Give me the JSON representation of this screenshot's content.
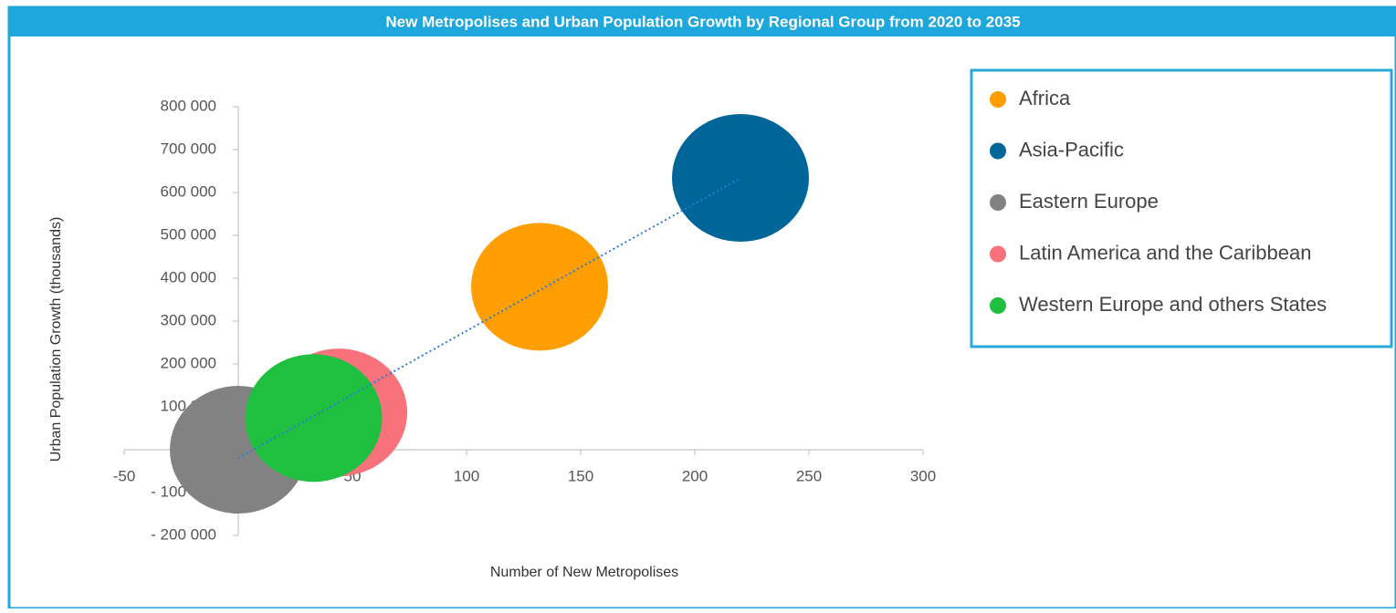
{
  "chart_data": {
    "type": "bubble",
    "title": "New Metropolises and Urban Population Growth by Regional Group from 2020 to 2035",
    "xlabel": "Number of New Metropolises",
    "ylabel": "Urban Population Growth (thousands)",
    "series": [
      {
        "name": "Africa",
        "color": "#ff9e00",
        "x": [
          132
        ],
        "values": [
          380000
        ]
      },
      {
        "name": "Asia-Pacific",
        "color": "#006699",
        "x": [
          220
        ],
        "values": [
          634000
        ]
      },
      {
        "name": "Eastern Europe",
        "color": "#828282",
        "x": [
          0
        ],
        "values": [
          0
        ]
      },
      {
        "name": "Latin America and the Caribbean",
        "color": "#f7727a",
        "x": [
          44
        ],
        "values": [
          87000
        ]
      },
      {
        "name": "Western Europe and others States",
        "color": "#1fbf3f",
        "x": [
          33
        ],
        "values": [
          74000
        ]
      }
    ],
    "xlim": [
      -50,
      300
    ],
    "xticks": [
      -50,
      0,
      50,
      100,
      150,
      200,
      250,
      300
    ],
    "ylim": [
      -200000,
      800000
    ],
    "yticks": [
      {
        "value": -200000,
        "label": "- 200 000"
      },
      {
        "value": -100000,
        "label": "- 100 000"
      },
      0,
      {
        "value": 100000,
        "label": "100 000"
      },
      {
        "value": 200000,
        "label": "200 000"
      },
      {
        "value": 300000,
        "label": "300 000"
      },
      {
        "value": 400000,
        "label": "400 000"
      },
      {
        "value": 500000,
        "label": "500 000"
      },
      {
        "value": 600000,
        "label": "600 000"
      },
      {
        "value": 700000,
        "label": "700 000"
      },
      {
        "value": 800000,
        "label": "800 000"
      }
    ],
    "trendline": "linear",
    "trendline_color": "#2b7bd6",
    "legend": "upper right"
  }
}
